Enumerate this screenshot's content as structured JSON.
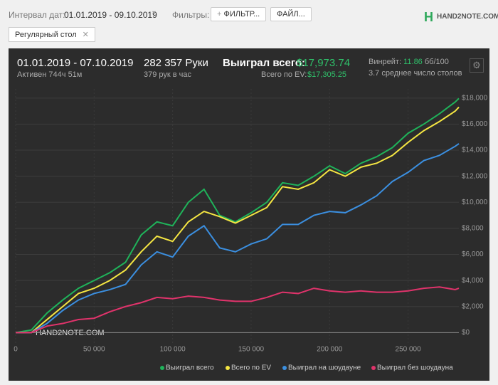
{
  "toolbar": {
    "date_label": "Интервал дат:",
    "date_value": "01.01.2019 - 09.10.2019",
    "filters_label": "Фильтры:",
    "filter_button": "ФИЛЬТР...",
    "file_button": "ФАЙЛ...",
    "logo": "HAND2NOTE.COM",
    "tab": "Регулярный стол"
  },
  "summary": {
    "period": "01.01.2019 - 07.10.2019",
    "active": "Активен 744ч 51м",
    "hands": "282 357 Руки",
    "hands_per_hour": "379 рук в час",
    "won_label": "Выиграл всего:",
    "won_value": "$17,973.74",
    "ev_label": "Всего по EV:",
    "ev_value": "$17,305.25",
    "winrate_label": "Винрейт:",
    "winrate_value": "11.86",
    "winrate_unit": "бб/100",
    "tables": "3.7 среднее число столов"
  },
  "chart_data": {
    "type": "line",
    "x": [
      0,
      10000,
      20000,
      30000,
      40000,
      50000,
      60000,
      70000,
      80000,
      90000,
      100000,
      110000,
      120000,
      130000,
      140000,
      150000,
      160000,
      170000,
      180000,
      190000,
      200000,
      210000,
      220000,
      230000,
      240000,
      250000,
      260000,
      270000,
      280000,
      282357
    ],
    "series": [
      {
        "name": "Выиграл всего",
        "color": "#1fb35a",
        "values": [
          0,
          200,
          1500,
          2500,
          3400,
          4000,
          4600,
          5400,
          7500,
          8500,
          8200,
          10000,
          11000,
          9000,
          8500,
          9200,
          10000,
          11500,
          11300,
          12000,
          12800,
          12200,
          13000,
          13500,
          14200,
          15300,
          16000,
          16800,
          17700,
          17974
        ]
      },
      {
        "name": "Всего по EV",
        "color": "#f5e642",
        "values": [
          0,
          0,
          1000,
          2000,
          3000,
          3400,
          4000,
          4800,
          6200,
          7400,
          7000,
          8500,
          9300,
          8900,
          8400,
          9000,
          9600,
          11200,
          11000,
          11500,
          12500,
          12000,
          12700,
          13000,
          13600,
          14600,
          15500,
          16200,
          17000,
          17305
        ]
      },
      {
        "name": "Выиграл на шоудауне",
        "color": "#3b8fe0",
        "values": [
          0,
          0,
          700,
          1700,
          2500,
          3000,
          3300,
          3700,
          5200,
          6200,
          5800,
          7400,
          8200,
          6500,
          6200,
          6800,
          7200,
          8300,
          8300,
          9000,
          9300,
          9200,
          9800,
          10500,
          11600,
          12300,
          13200,
          13600,
          14300,
          14500
        ]
      },
      {
        "name": "Выиграл без шоудауна",
        "color": "#e0336b",
        "values": [
          0,
          0,
          500,
          700,
          1000,
          1100,
          1600,
          2000,
          2300,
          2700,
          2600,
          2800,
          2700,
          2500,
          2400,
          2400,
          2700,
          3100,
          3000,
          3400,
          3200,
          3100,
          3200,
          3100,
          3100,
          3200,
          3400,
          3500,
          3300,
          3400
        ]
      }
    ],
    "xlim": [
      0,
      282357
    ],
    "ylim": [
      -800,
      18700
    ],
    "xticks": [
      0,
      {
        "value": 50000,
        "label": "50 000"
      },
      {
        "value": 100000,
        "label": "100 000"
      },
      {
        "value": 150000,
        "label": "150 000"
      },
      {
        "value": 200000,
        "label": "200 000"
      },
      {
        "value": 250000,
        "label": "250 000"
      }
    ],
    "yticks": [
      {
        "value": 0,
        "label": "$0"
      },
      {
        "value": 2000,
        "label": "$2,000"
      },
      {
        "value": 4000,
        "label": "$4,000"
      },
      {
        "value": 6000,
        "label": "$6,000"
      },
      {
        "value": 8000,
        "label": "$8,000"
      },
      {
        "value": 10000,
        "label": "$10,000"
      },
      {
        "value": 12000,
        "label": "$12,000"
      },
      {
        "value": 14000,
        "label": "$14,000"
      },
      {
        "value": 16000,
        "label": "$16,000"
      },
      {
        "value": 18000,
        "label": "$18,000"
      }
    ],
    "grid": true
  }
}
